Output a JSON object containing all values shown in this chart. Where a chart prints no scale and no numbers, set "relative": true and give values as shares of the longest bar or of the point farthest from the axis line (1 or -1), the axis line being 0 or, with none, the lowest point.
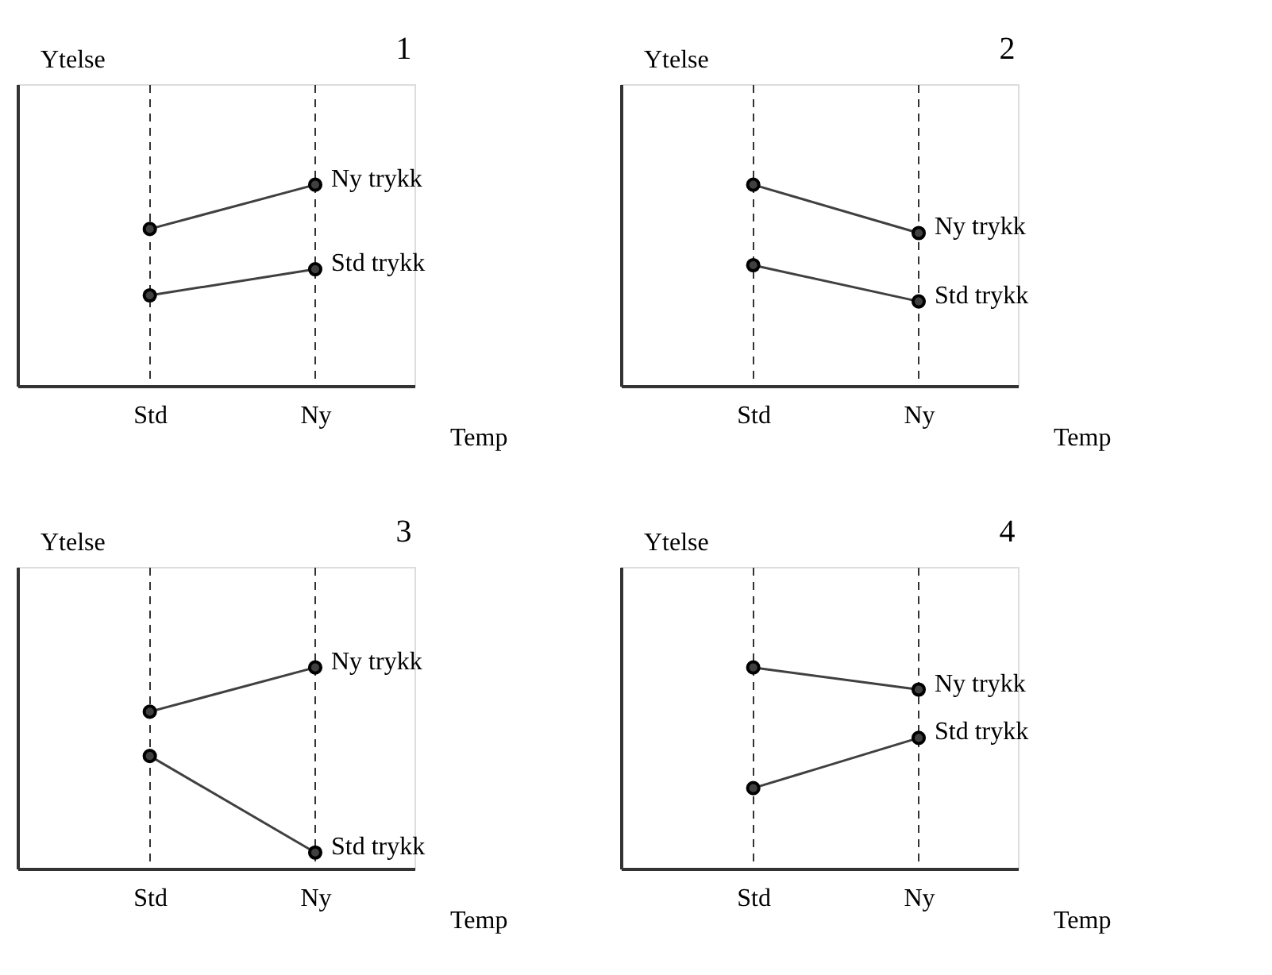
{
  "chart_data": [
    {
      "type": "line",
      "title": "1",
      "categories": [
        "Std",
        "Ny"
      ],
      "xlabel": "Temp",
      "ylabel": "Ytelse",
      "relative": true,
      "grid": "x",
      "tick_labels": "x",
      "marker": "circle",
      "line_style": "solid",
      "series": [
        {
          "name": "Ny trykk",
          "color": "#404040",
          "values": [
            0.78,
            1
          ]
        },
        {
          "name": "Std trykk",
          "color": "#404040",
          "values": [
            0.45,
            0.58
          ]
        }
      ]
    },
    {
      "type": "line",
      "title": "2",
      "categories": [
        "Std",
        "Ny"
      ],
      "xlabel": "Temp",
      "ylabel": "Ytelse",
      "relative": true,
      "grid": "x",
      "tick_labels": "x",
      "marker": "circle",
      "line_style": "solid",
      "series": [
        {
          "name": "Ny trykk",
          "color": "#404040",
          "values": [
            1,
            0.76
          ]
        },
        {
          "name": "Std trykk",
          "color": "#404040",
          "values": [
            0.6,
            0.42
          ]
        }
      ]
    },
    {
      "type": "line",
      "title": "3",
      "categories": [
        "Std",
        "Ny"
      ],
      "xlabel": "Temp",
      "ylabel": "Ytelse",
      "relative": true,
      "grid": "x",
      "tick_labels": "x",
      "marker": "circle",
      "line_style": "solid",
      "series": [
        {
          "name": "Ny trykk",
          "color": "#404040",
          "values": [
            0.78,
            1
          ]
        },
        {
          "name": "Std trykk",
          "color": "#404040",
          "values": [
            0.56,
            0.08
          ]
        }
      ]
    },
    {
      "type": "line",
      "title": "4",
      "categories": [
        "Std",
        "Ny"
      ],
      "xlabel": "Temp",
      "ylabel": "Ytelse",
      "relative": true,
      "grid": "x",
      "tick_labels": "x",
      "marker": "circle",
      "line_style": "solid",
      "series": [
        {
          "name": "Ny trykk",
          "color": "#404040",
          "values": [
            1,
            0.89
          ]
        },
        {
          "name": "Std trykk",
          "color": "#404040",
          "values": [
            0.4,
            0.65
          ]
        }
      ]
    }
  ]
}
